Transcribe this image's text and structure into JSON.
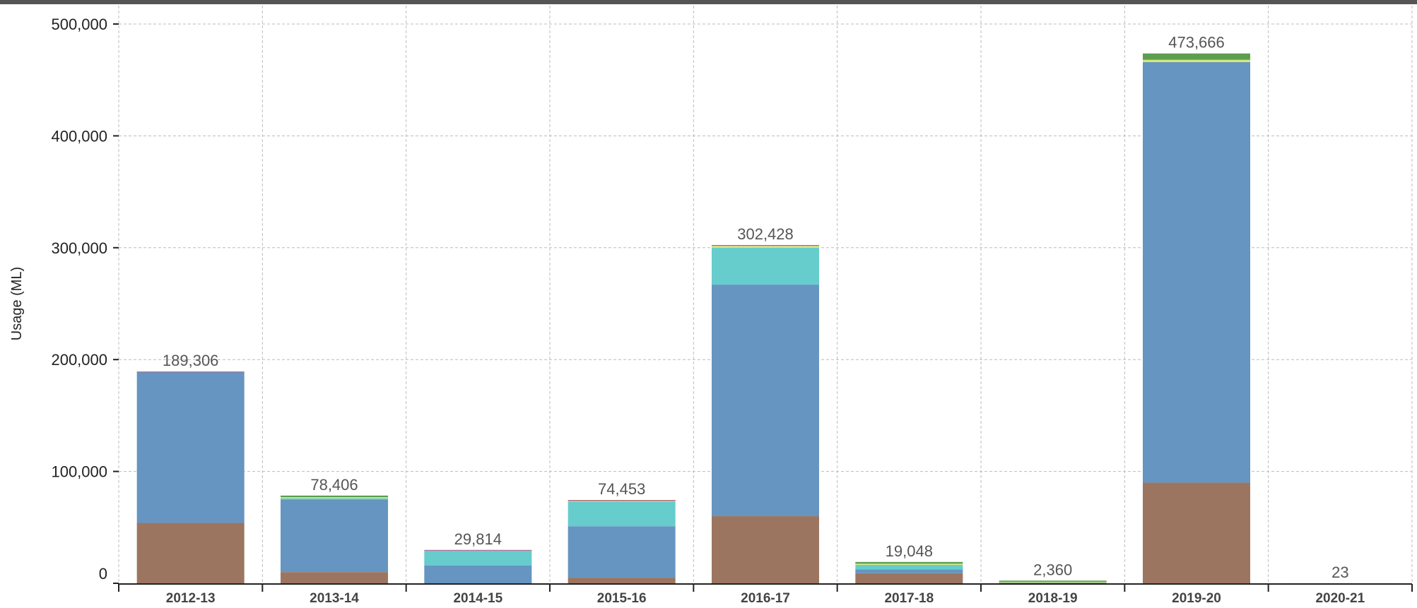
{
  "chart_data": {
    "type": "bar",
    "stacked": true,
    "title": "",
    "xlabel": "",
    "ylabel": "Usage (ML)",
    "ylim": [
      0,
      500000
    ],
    "yticks": [
      0,
      100000,
      200000,
      300000,
      400000,
      500000
    ],
    "ytick_labels": [
      "0",
      "100,000",
      "200,000",
      "300,000",
      "400,000",
      "500,000"
    ],
    "grid": true,
    "legend": "none",
    "categories": [
      "2012-13",
      "2013-14",
      "2014-15",
      "2015-16",
      "2016-17",
      "2017-18",
      "2018-19",
      "2019-20",
      "2020-21"
    ],
    "totals": [
      189306,
      78406,
      29814,
      74453,
      302428,
      19048,
      2360,
      473666,
      23
    ],
    "total_labels": [
      "189,306",
      "78,406",
      "29,814",
      "74,453",
      "302,428",
      "19,048",
      "2,360",
      "473,666",
      "23"
    ],
    "series": [
      {
        "color": "#9c7560",
        "values": [
          54000,
          10000,
          0,
          5000,
          60000,
          9000,
          400,
          90000,
          0
        ]
      },
      {
        "color": "#6595c0",
        "values": [
          135000,
          65000,
          16000,
          46000,
          207000,
          3500,
          0,
          376000,
          0
        ]
      },
      {
        "color": "#66cccc",
        "values": [
          0,
          1000,
          13500,
          22000,
          33000,
          4000,
          500,
          0,
          0
        ]
      },
      {
        "color": "#d4e87a",
        "values": [
          0,
          1000,
          0,
          700,
          1600,
          1000,
          400,
          2000,
          0
        ]
      },
      {
        "color": "#5c9e4e",
        "values": [
          0,
          1406,
          0,
          453,
          0,
          1548,
          1060,
          5666,
          23
        ]
      },
      {
        "color": "#c45a8a",
        "values": [
          306,
          0,
          314,
          300,
          828,
          0,
          0,
          0,
          0
        ]
      }
    ]
  }
}
